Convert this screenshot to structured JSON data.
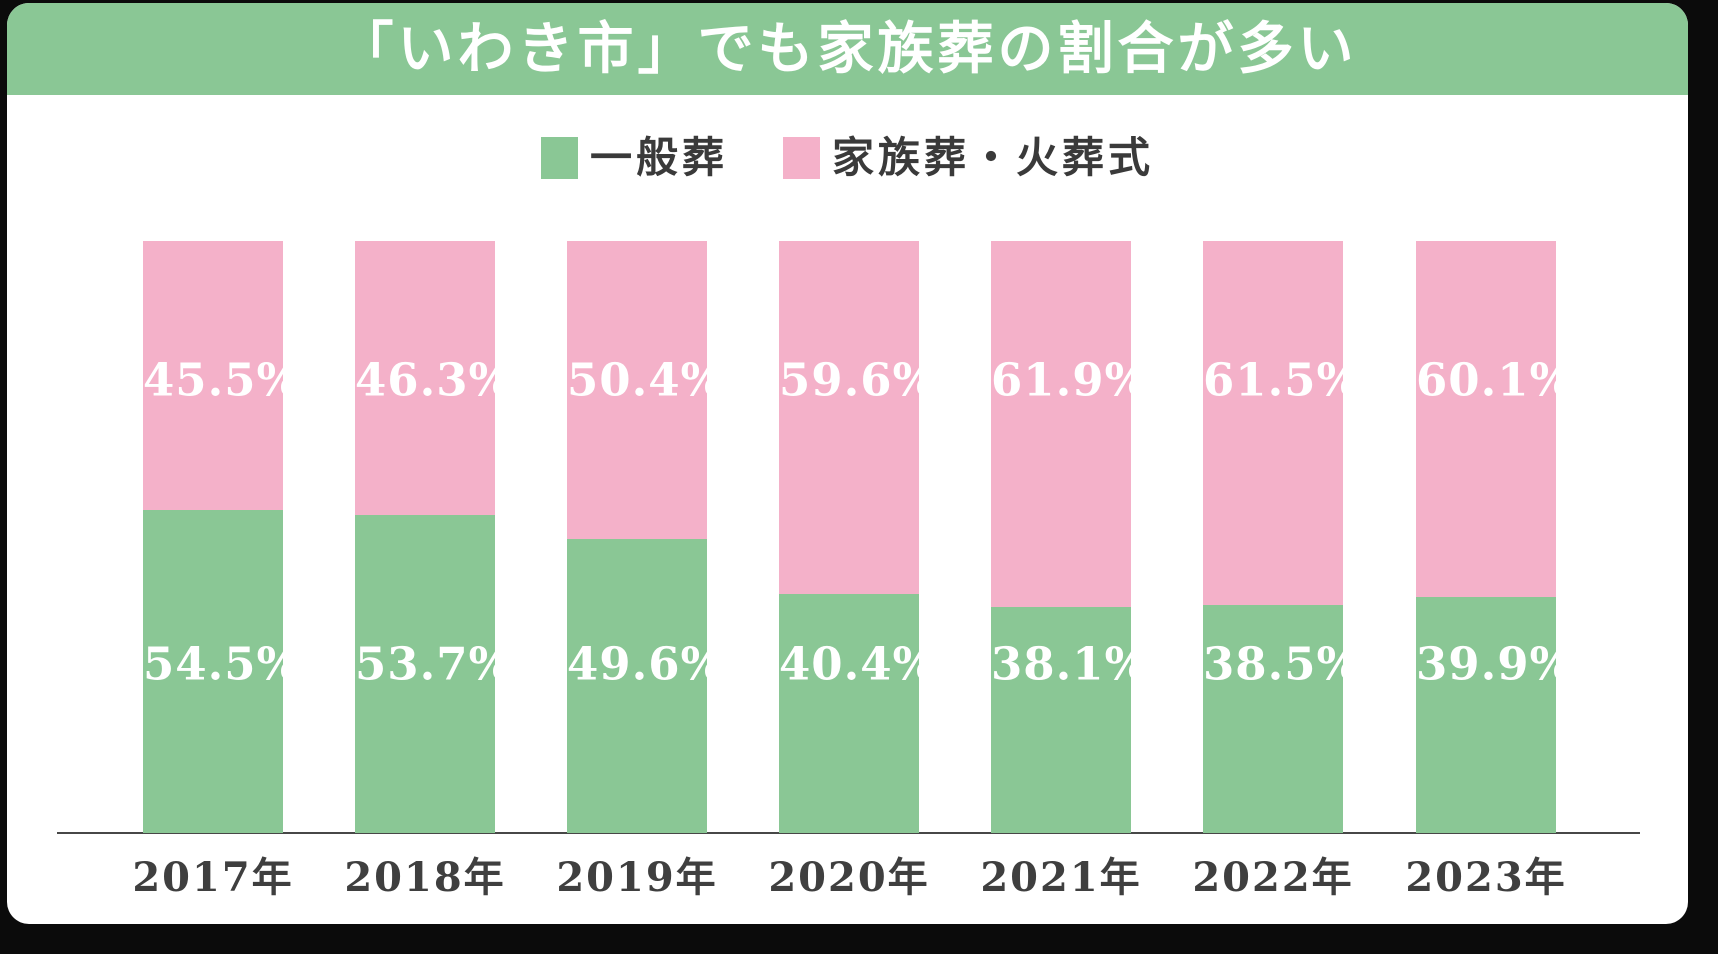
{
  "page": {
    "surround_color": "#0b0b0b",
    "card_color": "#ffffff"
  },
  "header": {
    "title": "「いわき市」でも家族葬の割合が多い",
    "background": "#8ac795",
    "text_color": "#ffffff"
  },
  "legend": [
    {
      "label": "一般葬",
      "color": "#8ac795"
    },
    {
      "label": "家族葬・火葬式",
      "color": "#f4b1c9"
    }
  ],
  "axis": {
    "line_color": "#474747",
    "tick_color": "#3f3f3f"
  },
  "chart_data": {
    "type": "bar",
    "stacked": true,
    "title": "「いわき市」でも家族葬の割合が多い",
    "categories": [
      "2017年",
      "2018年",
      "2019年",
      "2020年",
      "2021年",
      "2022年",
      "2023年"
    ],
    "series": [
      {
        "name": "一般葬",
        "color": "#8ac795",
        "position": "bottom",
        "values": [
          54.5,
          53.7,
          49.6,
          40.4,
          38.1,
          38.5,
          39.9
        ]
      },
      {
        "name": "家族葬・火葬式",
        "color": "#f4b1c9",
        "position": "top",
        "values": [
          45.5,
          46.3,
          50.4,
          59.6,
          61.9,
          61.5,
          60.1
        ]
      }
    ],
    "value_suffix": "%",
    "value_label_color": "#ffffff",
    "ylim": [
      0,
      100
    ],
    "grid": false,
    "legend_position": "top",
    "xlabel": "",
    "ylabel": ""
  }
}
